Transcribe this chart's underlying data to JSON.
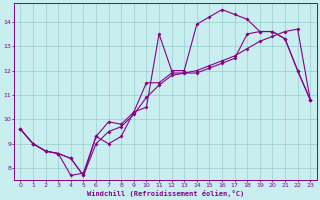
{
  "xlabel": "Windchill (Refroidissement éolien,°C)",
  "bg_color": "#c8eef0",
  "line_color": "#880088",
  "grid_color": "#99cccc",
  "xlim": [
    -0.5,
    23.5
  ],
  "ylim": [
    7.5,
    14.75
  ],
  "xticks": [
    0,
    1,
    2,
    3,
    4,
    5,
    6,
    7,
    8,
    9,
    10,
    11,
    12,
    13,
    14,
    15,
    16,
    17,
    18,
    19,
    20,
    21,
    22,
    23
  ],
  "yticks": [
    8,
    9,
    10,
    11,
    12,
    13,
    14
  ],
  "line1_x": [
    0,
    1,
    2,
    3,
    4,
    5,
    6,
    7,
    8,
    9,
    10,
    11,
    12,
    13,
    14,
    15,
    16,
    17,
    18,
    19,
    20,
    21,
    22,
    23
  ],
  "line1_y": [
    9.6,
    9.0,
    8.7,
    8.6,
    7.7,
    7.8,
    9.3,
    9.0,
    9.3,
    10.3,
    10.5,
    13.5,
    12.0,
    12.0,
    13.9,
    14.2,
    14.5,
    14.3,
    14.1,
    13.6,
    13.6,
    13.3,
    12.0,
    10.8
  ],
  "line2_x": [
    0,
    1,
    2,
    3,
    4,
    5,
    6,
    7,
    8,
    9,
    10,
    11,
    12,
    13,
    14,
    15,
    16,
    17,
    18,
    19,
    20,
    21,
    22,
    23
  ],
  "line2_y": [
    9.6,
    9.0,
    8.7,
    8.6,
    8.4,
    7.7,
    9.3,
    9.9,
    9.8,
    10.3,
    11.5,
    11.5,
    11.9,
    11.9,
    11.9,
    12.1,
    12.3,
    12.5,
    13.5,
    13.6,
    13.6,
    13.3,
    12.0,
    10.8
  ],
  "line3_x": [
    0,
    1,
    2,
    3,
    4,
    5,
    6,
    7,
    8,
    9,
    10,
    11,
    12,
    13,
    14,
    15,
    16,
    17,
    18,
    19,
    20,
    21,
    22,
    23
  ],
  "line3_y": [
    9.6,
    9.0,
    8.7,
    8.6,
    8.4,
    7.7,
    9.0,
    9.5,
    9.7,
    10.2,
    10.9,
    11.4,
    11.8,
    11.9,
    12.0,
    12.2,
    12.4,
    12.6,
    12.9,
    13.2,
    13.4,
    13.6,
    13.7,
    10.8
  ]
}
